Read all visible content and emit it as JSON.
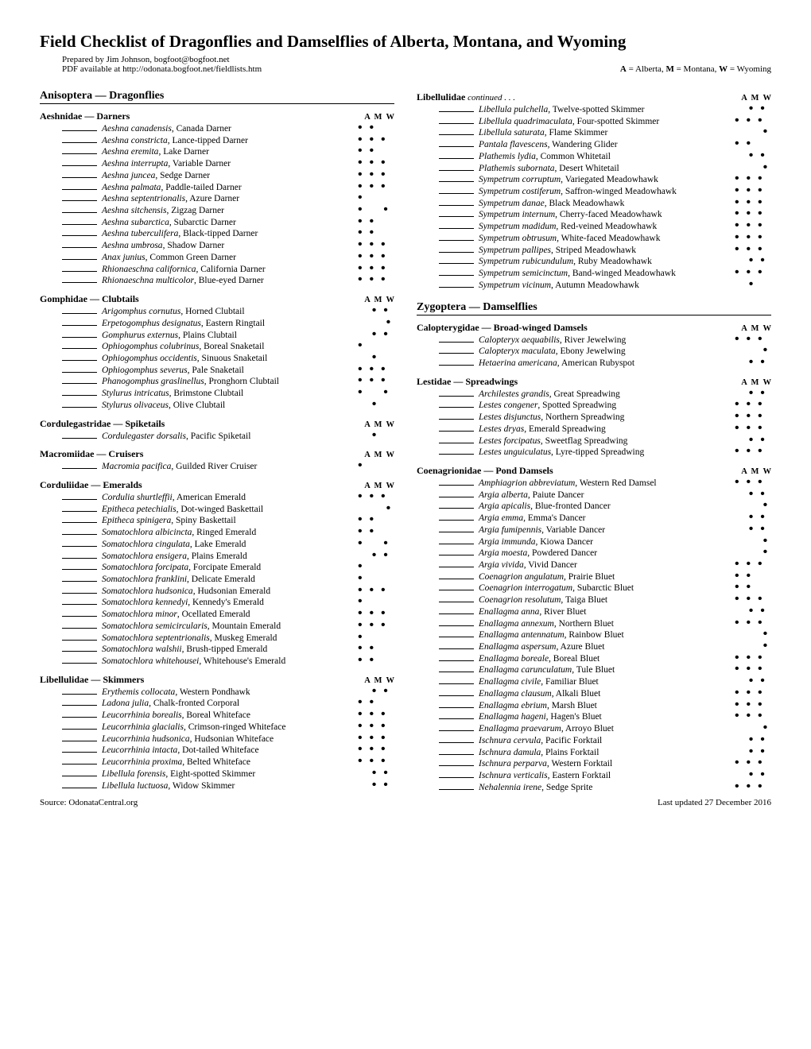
{
  "title": "Field Checklist of Dragonflies and Damselflies of Alberta, Montana, and Wyoming",
  "prepared": "Prepared by Jim Johnson, bogfoot@bogfoot.net",
  "pdf": "PDF available at http://odonata.bogfoot.net/fieldlists.htm",
  "legend_a": "A",
  "legend_a_txt": " = Alberta, ",
  "legend_m": "M",
  "legend_m_txt": " = Montana, ",
  "legend_w": "W",
  "legend_w_txt": " = Wyoming",
  "col_a": "A",
  "col_m": "M",
  "col_w": "W",
  "source": "Source: OdonataCentral.org",
  "updated": "Last updated 27 December 2016",
  "suborders": [
    {
      "name": "Anisoptera — Dragonflies"
    },
    {
      "name": "Zygoptera — Damselflies"
    }
  ],
  "left": [
    {
      "family": "Aeshnidae — Darners",
      "amw": true,
      "species": [
        {
          "s": "Aeshna canadensis",
          "c": "Canada Darner",
          "d": "• •  "
        },
        {
          "s": "Aeshna constricta",
          "c": "Lance-tipped Darner",
          "d": "• • •"
        },
        {
          "s": "Aeshna eremita",
          "c": "Lake Darner",
          "d": "• •  "
        },
        {
          "s": "Aeshna interrupta",
          "c": "Variable Darner",
          "d": "• • •"
        },
        {
          "s": "Aeshna juncea",
          "c": "Sedge Darner",
          "d": "• • •"
        },
        {
          "s": "Aeshna palmata",
          "c": "Paddle-tailed Darner",
          "d": "• • •"
        },
        {
          "s": "Aeshna septentrionalis",
          "c": "Azure Darner",
          "d": "•    "
        },
        {
          "s": "Aeshna sitchensis",
          "c": "Zigzag Darner",
          "d": "•   •"
        },
        {
          "s": "Aeshna subarctica",
          "c": "Subarctic Darner",
          "d": "• •  "
        },
        {
          "s": "Aeshna tuberculifera",
          "c": "Black-tipped Darner",
          "d": "• •  "
        },
        {
          "s": "Aeshna umbrosa",
          "c": "Shadow Darner",
          "d": "• • •"
        },
        {
          "s": "Anax junius",
          "c": "Common Green Darner",
          "d": "• • •"
        },
        {
          "s": "Rhionaeschna californica",
          "c": "California Darner",
          "d": "• • •"
        },
        {
          "s": "Rhionaeschna multicolor",
          "c": "Blue-eyed Darner",
          "d": "• • •"
        }
      ]
    },
    {
      "family": "Gomphidae — Clubtails",
      "amw": true,
      "species": [
        {
          "s": "Arigomphus cornutus",
          "c": "Horned Clubtail",
          "d": "  • •"
        },
        {
          "s": "Erpetogomphus designatus",
          "c": "Eastern Ringtail",
          "d": "    •"
        },
        {
          "s": "Gomphurus externus",
          "c": "Plains Clubtail",
          "d": "  • •"
        },
        {
          "s": "Ophiogomphus colubrinus",
          "c": "Boreal Snaketail",
          "d": "•    "
        },
        {
          "s": "Ophiogomphus occidentis",
          "c": "Sinuous Snaketail",
          "d": "  •  "
        },
        {
          "s": "Ophiogomphus severus",
          "c": "Pale Snaketail",
          "d": "• • •"
        },
        {
          "s": "Phanogomphus graslinellus",
          "c": "Pronghorn Clubtail",
          "d": "• • •"
        },
        {
          "s": "Stylurus intricatus",
          "c": "Brimstone Clubtail",
          "d": "•   •"
        },
        {
          "s": "Stylurus olivaceus",
          "c": "Olive Clubtail",
          "d": "  •  "
        }
      ]
    },
    {
      "family": "Cordulegastridae — Spiketails",
      "amw": true,
      "species": [
        {
          "s": "Cordulegaster dorsalis",
          "c": "Pacific Spiketail",
          "d": "  •  "
        }
      ]
    },
    {
      "family": "Macromiidae — Cruisers",
      "amw": true,
      "species": [
        {
          "s": "Macromia pacifica",
          "c": "Guilded River Cruiser",
          "d": "•    "
        }
      ]
    },
    {
      "family": "Corduliidae — Emeralds",
      "amw": true,
      "species": [
        {
          "s": "Cordulia shurtleffii",
          "c": "American Emerald",
          "d": "• • •"
        },
        {
          "s": "Epitheca petechialis",
          "c": "Dot-winged Baskettail",
          "d": "    •"
        },
        {
          "s": "Epitheca spinigera",
          "c": "Spiny Baskettail",
          "d": "• •  "
        },
        {
          "s": "Somatochlora albicincta",
          "c": "Ringed Emerald",
          "d": "• •  "
        },
        {
          "s": "Somatochlora cingulata",
          "c": "Lake Emerald",
          "d": "•   •"
        },
        {
          "s": "Somatochlora ensigera",
          "c": "Plains Emerald",
          "d": "  • •"
        },
        {
          "s": "Somatochlora forcipata",
          "c": "Forcipate Emerald",
          "d": "•    "
        },
        {
          "s": "Somatochlora franklini",
          "c": "Delicate Emerald",
          "d": "•    "
        },
        {
          "s": "Somatochlora hudsonica",
          "c": "Hudsonian Emerald",
          "d": "• • •"
        },
        {
          "s": "Somatochlora kennedyi",
          "c": "Kennedy's Emerald",
          "d": "•    "
        },
        {
          "s": "Somatochlora minor",
          "c": "Ocellated Emerald",
          "d": "• • •"
        },
        {
          "s": "Somatochlora semicircularis",
          "c": "Mountain Emerald",
          "d": "• • •"
        },
        {
          "s": "Somatochlora septentrionalis",
          "c": "Muskeg Emerald",
          "d": "•    "
        },
        {
          "s": "Somatochlora walshii",
          "c": "Brush-tipped Emerald",
          "d": "• •  "
        },
        {
          "s": "Somatochlora whitehousei",
          "c": "Whitehouse's Emerald",
          "d": "• •  "
        }
      ]
    },
    {
      "family": "Libellulidae — Skimmers",
      "amw": true,
      "species": [
        {
          "s": "Erythemis collocata",
          "c": "Western Pondhawk",
          "d": "  • •"
        },
        {
          "s": "Ladona julia",
          "c": "Chalk-fronted Corporal",
          "d": "• •  "
        },
        {
          "s": "Leucorrhinia borealis",
          "c": "Boreal Whiteface",
          "d": "• • •"
        },
        {
          "s": "Leucorrhinia glacialis",
          "c": "Crimson-ringed Whiteface",
          "d": "• • •"
        },
        {
          "s": "Leucorrhinia hudsonica",
          "c": "Hudsonian Whiteface",
          "d": "• • •"
        },
        {
          "s": "Leucorrhinia intacta",
          "c": "Dot-tailed Whiteface",
          "d": "• • •"
        },
        {
          "s": "Leucorrhinia proxima",
          "c": "Belted Whiteface",
          "d": "• • •"
        },
        {
          "s": "Libellula forensis",
          "c": "Eight-spotted Skimmer",
          "d": "  • •"
        },
        {
          "s": "Libellula luctuosa",
          "c": "Widow Skimmer",
          "d": "  • •"
        }
      ]
    }
  ],
  "right_top": {
    "family": "Libellulidae",
    "cont": " continued . . .",
    "amw": true,
    "species": [
      {
        "s": "Libellula pulchella",
        "c": "Twelve-spotted Skimmer",
        "d": "  • •"
      },
      {
        "s": "Libellula quadrimaculata",
        "c": "Four-spotted Skimmer",
        "d": "• • •"
      },
      {
        "s": "Libellula saturata",
        "c": "Flame Skimmer",
        "d": "    •"
      },
      {
        "s": "Pantala flavescens",
        "c": "Wandering Glider",
        "d": "• •  "
      },
      {
        "s": "Plathemis lydia",
        "c": "Common Whitetail",
        "d": "  • •"
      },
      {
        "s": "Plathemis subornata",
        "c": "Desert Whitetail",
        "d": "    •"
      },
      {
        "s": "Sympetrum corruptum",
        "c": "Variegated Meadowhawk",
        "d": "• • •"
      },
      {
        "s": "Sympetrum costiferum",
        "c": "Saffron-winged Meadowhawk",
        "d": "• • •"
      },
      {
        "s": "Sympetrum danae",
        "c": "Black Meadowhawk",
        "d": "• • •"
      },
      {
        "s": "Sympetrum internum",
        "c": "Cherry-faced Meadowhawk",
        "d": "• • •"
      },
      {
        "s": "Sympetrum madidum",
        "c": "Red-veined Meadowhawk",
        "d": "• • •"
      },
      {
        "s": "Sympetrum obtrusum",
        "c": "White-faced Meadowhawk",
        "d": "• • •"
      },
      {
        "s": "Sympetrum pallipes",
        "c": "Striped Meadowhawk",
        "d": "• • •"
      },
      {
        "s": "Sympetrum rubicundulum",
        "c": "Ruby Meadowhawk",
        "d": "  • •"
      },
      {
        "s": "Sympetrum semicinctum",
        "c": "Band-winged Meadowhawk",
        "d": "• • •"
      },
      {
        "s": "Sympetrum vicinum",
        "c": "Autumn Meadowhawk",
        "d": "  •  "
      }
    ]
  },
  "right": [
    {
      "family": "Calopterygidae — Broad-winged Damsels",
      "amw": true,
      "species": [
        {
          "s": "Calopteryx aequabilis",
          "c": "River Jewelwing",
          "d": "• • •"
        },
        {
          "s": "Calopteryx maculata",
          "c": "Ebony Jewelwing",
          "d": "    •"
        },
        {
          "s": "Hetaerina americana",
          "c": "American Rubyspot",
          "d": "  • •"
        }
      ]
    },
    {
      "family": "Lestidae — Spreadwings",
      "amw": true,
      "species": [
        {
          "s": "Archilestes grandis",
          "c": "Great Spreadwing",
          "d": "  • •"
        },
        {
          "s": "Lestes congener",
          "c": "Spotted Spreadwing",
          "d": "• • •"
        },
        {
          "s": "Lestes disjunctus",
          "c": "Northern Spreadwing",
          "d": "• • •"
        },
        {
          "s": "Lestes dryas",
          "c": "Emerald Spreadwing",
          "d": "• • •"
        },
        {
          "s": "Lestes forcipatus",
          "c": "Sweetflag Spreadwing",
          "d": "  • •"
        },
        {
          "s": "Lestes unguiculatus",
          "c": "Lyre-tipped Spreadwing",
          "d": "• • •"
        }
      ]
    },
    {
      "family": "Coenagrionidae — Pond Damsels",
      "amw": true,
      "species": [
        {
          "s": "Amphiagrion abbreviatum",
          "c": "Western Red Damsel",
          "d": "• • •"
        },
        {
          "s": "Argia alberta",
          "c": "Paiute Dancer",
          "d": "  • •"
        },
        {
          "s": "Argia apicalis",
          "c": "Blue-fronted Dancer",
          "d": "    •"
        },
        {
          "s": "Argia emma",
          "c": "Emma's Dancer",
          "d": "  • •"
        },
        {
          "s": "Argia fumipennis",
          "c": "Variable Dancer",
          "d": "  • •"
        },
        {
          "s": "Argia immunda",
          "c": "Kiowa Dancer",
          "d": "    •"
        },
        {
          "s": "Argia moesta",
          "c": "Powdered Dancer",
          "d": "    •"
        },
        {
          "s": "Argia vivida",
          "c": "Vivid Dancer",
          "d": "• • •"
        },
        {
          "s": "Coenagrion angulatum",
          "c": "Prairie Bluet",
          "d": "• •  "
        },
        {
          "s": "Coenagrion interrogatum",
          "c": "Subarctic Bluet",
          "d": "• •  "
        },
        {
          "s": "Coenagrion resolutum",
          "c": "Taiga Bluet",
          "d": "• • •"
        },
        {
          "s": "Enallagma anna",
          "c": "River Bluet",
          "d": "  • •"
        },
        {
          "s": "Enallagma annexum",
          "c": "Northern Bluet",
          "d": "• • •"
        },
        {
          "s": "Enallagma antennatum",
          "c": "Rainbow Bluet",
          "d": "    •"
        },
        {
          "s": "Enallagma aspersum",
          "c": "Azure Bluet",
          "d": "    •"
        },
        {
          "s": "Enallagma boreale",
          "c": "Boreal Bluet",
          "d": "• • •"
        },
        {
          "s": "Enallagma carunculatum",
          "c": "Tule Bluet",
          "d": "• • •"
        },
        {
          "s": "Enallagma civile",
          "c": "Familiar Bluet",
          "d": "  • •"
        },
        {
          "s": "Enallagma clausum",
          "c": "Alkali Bluet",
          "d": "• • •"
        },
        {
          "s": "Enallagma ebrium",
          "c": "Marsh Bluet",
          "d": "• • •"
        },
        {
          "s": "Enallagma hageni",
          "c": "Hagen's Bluet",
          "d": "• • •"
        },
        {
          "s": "Enallagma praevarum",
          "c": "Arroyo Bluet",
          "d": "    •"
        },
        {
          "s": "Ischnura cervula",
          "c": "Pacific Forktail",
          "d": "  • •"
        },
        {
          "s": "Ischnura damula",
          "c": "Plains Forktail",
          "d": "  • •"
        },
        {
          "s": "Ischnura perparva",
          "c": "Western Forktail",
          "d": "• • •"
        },
        {
          "s": "Ischnura verticalis",
          "c": "Eastern Forktail",
          "d": "  • •"
        },
        {
          "s": "Nehalennia irene",
          "c": "Sedge Sprite",
          "d": "• • •"
        }
      ]
    }
  ]
}
